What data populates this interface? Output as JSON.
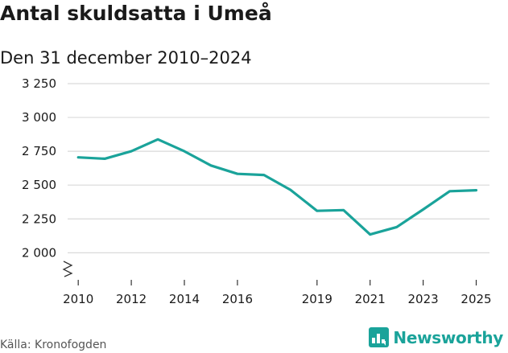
{
  "chart_data": {
    "type": "line",
    "title": "Antal skuldsatta i Umeå",
    "subtitle": "Den 31 december 2010–2024",
    "xlabel": "",
    "ylabel": "",
    "xlim": [
      2009.6,
      2025.5
    ],
    "ylim": [
      1800,
      3250
    ],
    "y_axis_break": true,
    "grid": true,
    "legend": "none",
    "y_ticks": [
      {
        "value": 2000,
        "label": "2 000"
      },
      {
        "value": 2250,
        "label": "2 250"
      },
      {
        "value": 2500,
        "label": "2 500"
      },
      {
        "value": 2750,
        "label": "2 750"
      },
      {
        "value": 3000,
        "label": "3 000"
      },
      {
        "value": 3250,
        "label": "3 250"
      }
    ],
    "x_ticks": [
      {
        "value": 2010,
        "label": "2010"
      },
      {
        "value": 2012,
        "label": "2012"
      },
      {
        "value": 2014,
        "label": "2014"
      },
      {
        "value": 2016,
        "label": "2016"
      },
      {
        "value": 2019,
        "label": "2019"
      },
      {
        "value": 2021,
        "label": "2021"
      },
      {
        "value": 2023,
        "label": "2023"
      },
      {
        "value": 2025,
        "label": "2025"
      }
    ],
    "series": [
      {
        "color": "#1aa39a",
        "x": [
          2010,
          2011,
          2012,
          2013,
          2014,
          2015,
          2016,
          2017,
          2018,
          2019,
          2020,
          2021,
          2022,
          2023,
          2024,
          2025
        ],
        "y": [
          2705,
          2695,
          2750,
          2838,
          2750,
          2645,
          2583,
          2575,
          2465,
          2310,
          2315,
          2135,
          2190,
          2320,
          2455,
          2462
        ]
      }
    ]
  },
  "source": "Källa: Kronofogden",
  "brand": {
    "name": "Newsworthy",
    "icon": "newsworthy-logo-icon",
    "color": "#1aa39a"
  }
}
